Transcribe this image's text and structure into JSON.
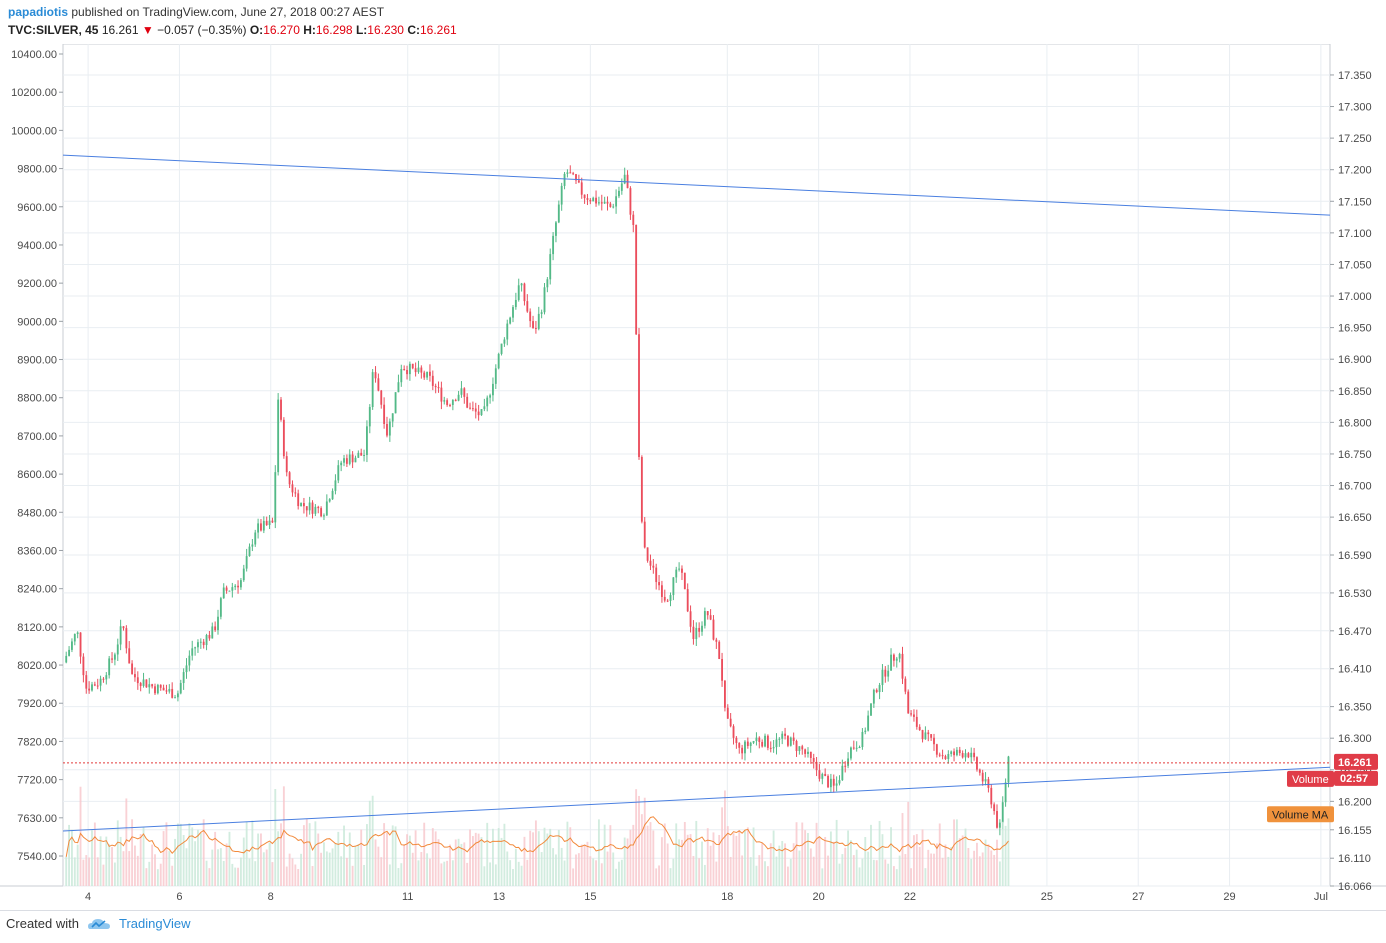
{
  "header": {
    "author": "papadiotis",
    "published_text": "published on TradingView.com, June 27, 2018 00:27 AEST",
    "symbol": "TVC:SILVER, 45",
    "last": "16.261",
    "change_arrow": "▼",
    "change": "−0.057 (−0.35%)",
    "o_label": "O:",
    "o_value": "16.270",
    "h_label": "H:",
    "h_value": "16.298",
    "l_label": "L:",
    "l_value": "16.230",
    "c_label": "C:",
    "c_value": "16.261"
  },
  "footer": {
    "created_with": "Created with",
    "brand": "TradingView"
  },
  "colors": {
    "up": "#53b987",
    "down": "#eb4d5c",
    "trendline": "#4a7fe0",
    "volume_ma": "#f28a3c",
    "vol_up": "#c7e7d7",
    "vol_down": "#f8c6cb",
    "grid": "#e9eef2",
    "price_line": "#e23b3b"
  },
  "chart_data": {
    "type": "candlestick",
    "series_name": "TVC:SILVER, 45",
    "x_ticks": [
      "4",
      "6",
      "8",
      "11",
      "13",
      "15",
      "18",
      "20",
      "22",
      "25",
      "27",
      "29",
      "Jul"
    ],
    "x_days": [
      4,
      6,
      8,
      11,
      13,
      15,
      18,
      20,
      22,
      25,
      27,
      29,
      31
    ],
    "x_range": [
      3.45,
      31.2
    ],
    "y_range": [
      16.066,
      17.38
    ],
    "left_axis_labels": [
      "10400.00",
      "10200.00",
      "10000.00",
      "9800.00",
      "9600.00",
      "9400.00",
      "9200.00",
      "9000.00",
      "8900.00",
      "8800.00",
      "8700.00",
      "8600.00",
      "8480.00",
      "8360.00",
      "8240.00",
      "8120.00",
      "8020.00",
      "7920.00",
      "7820.00",
      "7720.00",
      "7630.00",
      "7540.00"
    ],
    "right_axis_labels": [
      "17.350",
      "17.300",
      "17.250",
      "17.200",
      "17.150",
      "17.100",
      "17.050",
      "17.000",
      "16.950",
      "16.900",
      "16.850",
      "16.800",
      "16.750",
      "16.700",
      "16.650",
      "16.590",
      "16.530",
      "16.470",
      "16.410",
      "16.350",
      "16.300",
      "16.250",
      "16.200",
      "16.155",
      "16.110",
      "16.066"
    ],
    "right_axis_values": [
      17.35,
      17.3,
      17.25,
      17.2,
      17.15,
      17.1,
      17.05,
      17.0,
      16.95,
      16.9,
      16.85,
      16.8,
      16.75,
      16.7,
      16.65,
      16.59,
      16.53,
      16.47,
      16.41,
      16.35,
      16.3,
      16.25,
      16.2,
      16.155,
      16.11,
      16.066
    ],
    "close_anchors": [
      [
        3.5,
        16.42
      ],
      [
        3.8,
        16.47
      ],
      [
        4.0,
        16.38
      ],
      [
        4.3,
        16.39
      ],
      [
        4.6,
        16.43
      ],
      [
        4.8,
        16.48
      ],
      [
        5.0,
        16.4
      ],
      [
        5.5,
        16.38
      ],
      [
        6.0,
        16.37
      ],
      [
        6.3,
        16.44
      ],
      [
        6.8,
        16.47
      ],
      [
        7.0,
        16.53
      ],
      [
        7.4,
        16.55
      ],
      [
        7.7,
        16.63
      ],
      [
        8.1,
        16.64
      ],
      [
        8.2,
        16.84
      ],
      [
        8.4,
        16.71
      ],
      [
        8.7,
        16.67
      ],
      [
        9.2,
        16.66
      ],
      [
        9.6,
        16.74
      ],
      [
        10.1,
        16.75
      ],
      [
        10.3,
        16.89
      ],
      [
        10.6,
        16.78
      ],
      [
        10.9,
        16.89
      ],
      [
        11.5,
        16.87
      ],
      [
        11.9,
        16.83
      ],
      [
        12.2,
        16.85
      ],
      [
        12.4,
        16.82
      ],
      [
        12.7,
        16.81
      ],
      [
        13.2,
        16.95
      ],
      [
        13.5,
        17.02
      ],
      [
        13.8,
        16.94
      ],
      [
        14.0,
        16.99
      ],
      [
        14.3,
        17.12
      ],
      [
        14.5,
        17.2
      ],
      [
        14.9,
        17.16
      ],
      [
        15.2,
        17.15
      ],
      [
        15.5,
        17.14
      ],
      [
        15.8,
        17.19
      ],
      [
        16.0,
        17.1
      ],
      [
        16.1,
        16.75
      ],
      [
        16.2,
        16.6
      ],
      [
        16.5,
        16.55
      ],
      [
        16.7,
        16.52
      ],
      [
        17.0,
        16.57
      ],
      [
        17.3,
        16.46
      ],
      [
        17.6,
        16.5
      ],
      [
        17.9,
        16.42
      ],
      [
        18.0,
        16.33
      ],
      [
        18.3,
        16.28
      ],
      [
        18.7,
        16.3
      ],
      [
        19.0,
        16.29
      ],
      [
        19.3,
        16.3
      ],
      [
        19.7,
        16.28
      ],
      [
        20.1,
        16.24
      ],
      [
        20.4,
        16.22
      ],
      [
        20.7,
        16.28
      ],
      [
        21.0,
        16.3
      ],
      [
        21.3,
        16.38
      ],
      [
        21.6,
        16.42
      ],
      [
        21.8,
        16.44
      ],
      [
        22.0,
        16.34
      ],
      [
        22.4,
        16.3
      ],
      [
        22.8,
        16.27
      ],
      [
        23.3,
        16.28
      ],
      [
        23.6,
        16.24
      ],
      [
        23.8,
        16.21
      ],
      [
        24.0,
        16.15
      ],
      [
        24.2,
        16.27
      ]
    ],
    "volume_ma_label": "Volume MA",
    "volume_label": "Volume",
    "trend_lines": [
      {
        "x1": 3.45,
        "y1": 17.223,
        "x2": 31.2,
        "y2": 17.128
      },
      {
        "x1": 3.45,
        "y1": 16.153,
        "x2": 31.2,
        "y2": 16.254
      }
    ],
    "last_price": 16.261,
    "last_price_label": "16.261",
    "countdown": "02:57"
  }
}
